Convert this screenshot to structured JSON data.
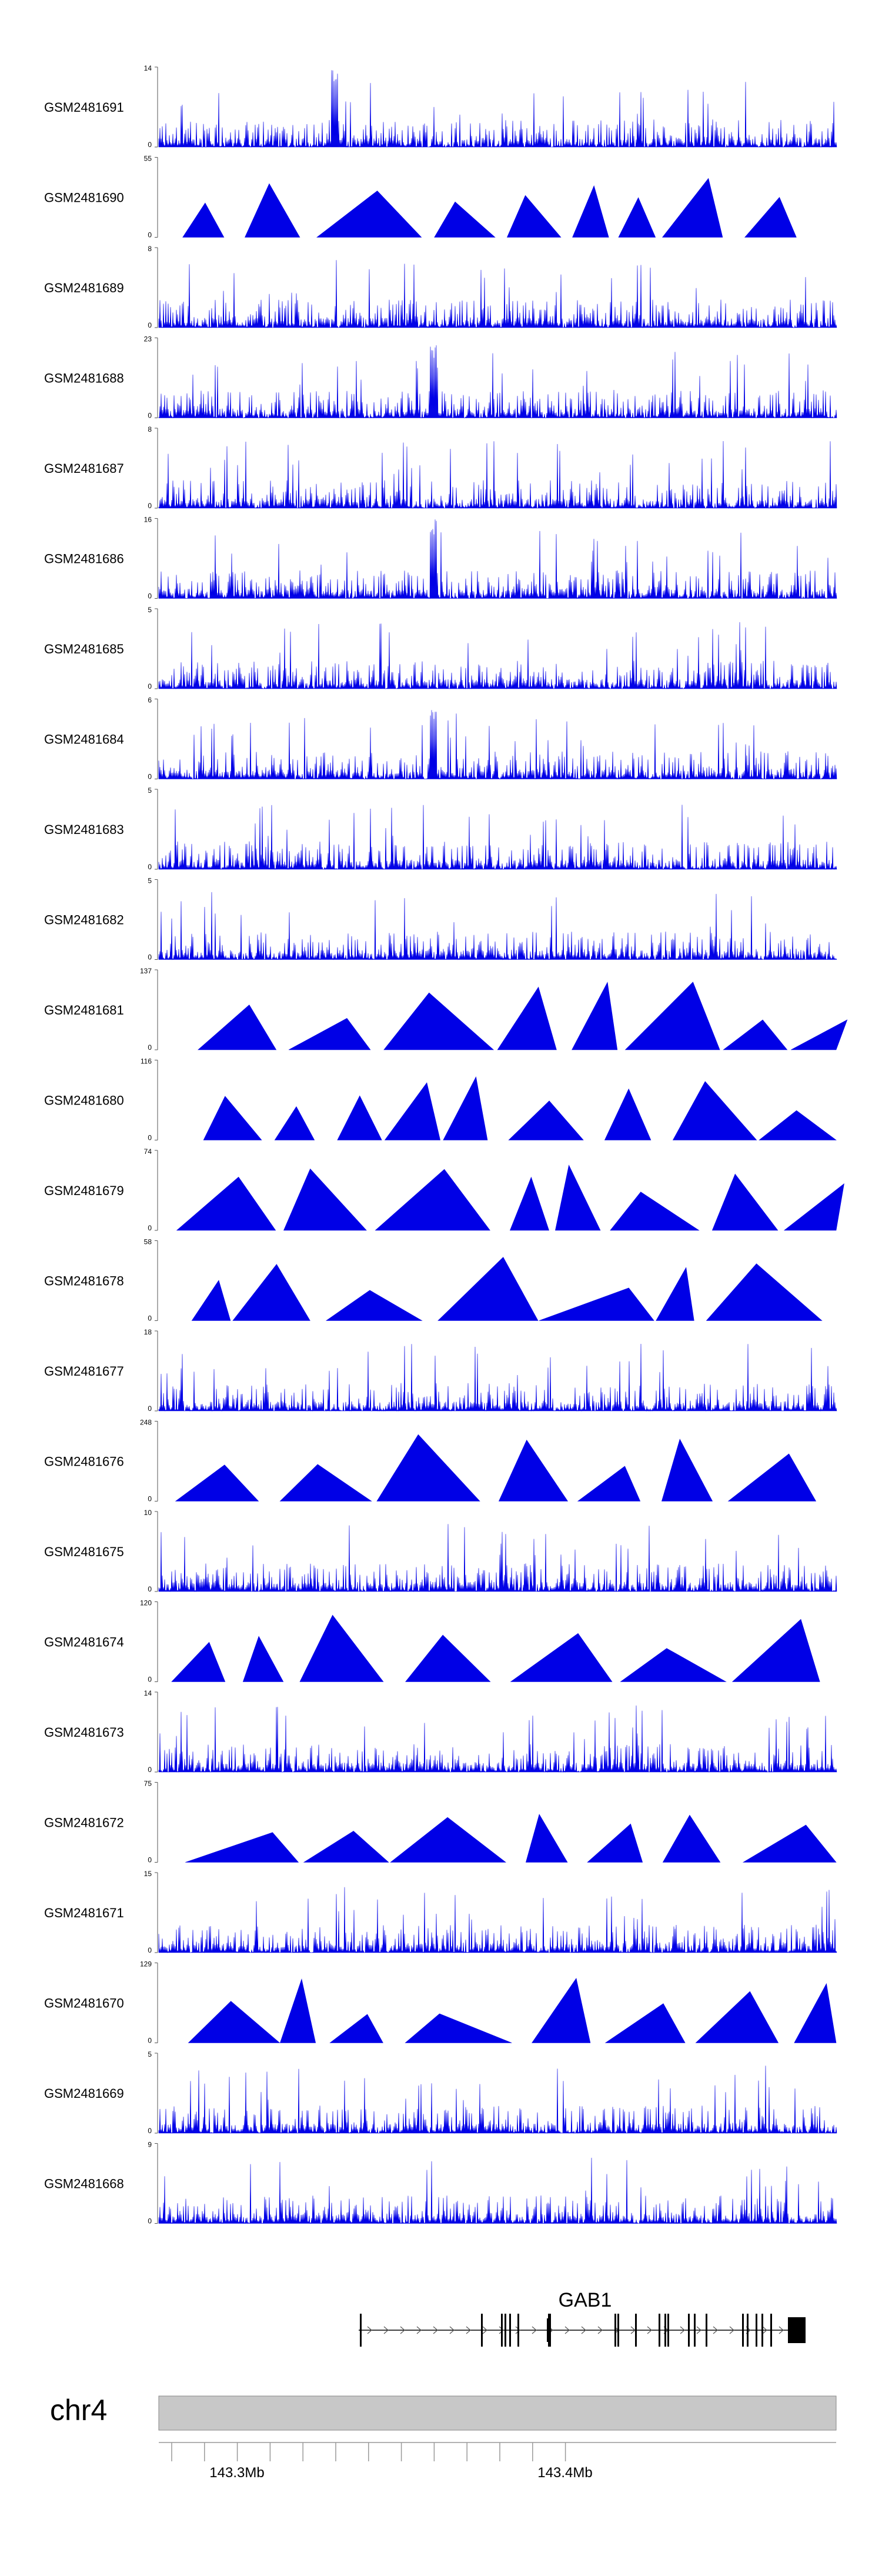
{
  "tracks": [
    {
      "name": "GSM2481691",
      "ymax": "14",
      "ymin": "0"
    },
    {
      "name": "GSM2481690",
      "ymax": "55",
      "ymin": "0"
    },
    {
      "name": "GSM2481689",
      "ymax": "8",
      "ymin": "0"
    },
    {
      "name": "GSM2481688",
      "ymax": "23",
      "ymin": "0"
    },
    {
      "name": "GSM2481687",
      "ymax": "8",
      "ymin": "0"
    },
    {
      "name": "GSM2481686",
      "ymax": "16",
      "ymin": "0"
    },
    {
      "name": "GSM2481685",
      "ymax": "5",
      "ymin": "0"
    },
    {
      "name": "GSM2481684",
      "ymax": "6",
      "ymin": "0"
    },
    {
      "name": "GSM2481683",
      "ymax": "5",
      "ymin": "0"
    },
    {
      "name": "GSM2481682",
      "ymax": "5",
      "ymin": "0"
    },
    {
      "name": "GSM2481681",
      "ymax": "137",
      "ymin": "0"
    },
    {
      "name": "GSM2481680",
      "ymax": "116",
      "ymin": "0"
    },
    {
      "name": "GSM2481679",
      "ymax": "74",
      "ymin": "0"
    },
    {
      "name": "GSM2481678",
      "ymax": "58",
      "ymin": "0"
    },
    {
      "name": "GSM2481677",
      "ymax": "18",
      "ymin": "0"
    },
    {
      "name": "GSM2481676",
      "ymax": "248",
      "ymin": "0"
    },
    {
      "name": "GSM2481675",
      "ymax": "10",
      "ymin": "0"
    },
    {
      "name": "GSM2481674",
      "ymax": "120",
      "ymin": "0"
    },
    {
      "name": "GSM2481673",
      "ymax": "14",
      "ymin": "0"
    },
    {
      "name": "GSM2481672",
      "ymax": "75",
      "ymin": "0"
    },
    {
      "name": "GSM2481671",
      "ymax": "15",
      "ymin": "0"
    },
    {
      "name": "GSM2481670",
      "ymax": "129",
      "ymin": "0"
    },
    {
      "name": "GSM2481669",
      "ymax": "5",
      "ymin": "0"
    },
    {
      "name": "GSM2481668",
      "ymax": "9",
      "ymin": "0"
    }
  ],
  "gene": {
    "name": "GAB1"
  },
  "chromosome": {
    "name": "chr4"
  },
  "axis": {
    "labels": [
      "143.3Mb",
      "143.4Mb"
    ]
  },
  "colors": {
    "signal": "#0000e6",
    "ideogram": "#c8c8c8",
    "gene": "#000000"
  }
}
